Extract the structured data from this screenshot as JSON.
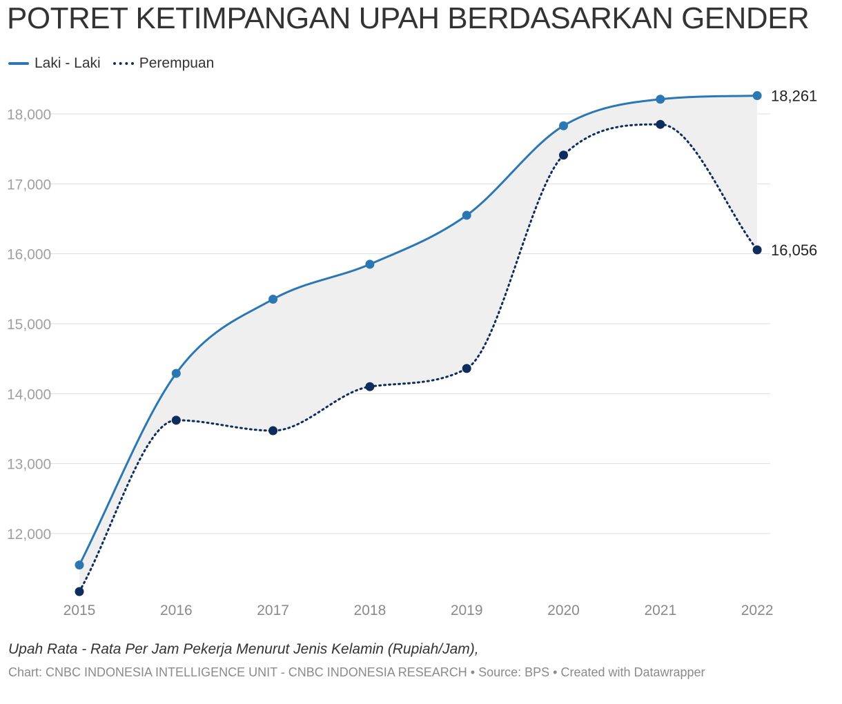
{
  "chart_data": {
    "type": "line",
    "title": "POTRET KETIMPANGAN UPAH BERDASARKAN GENDER",
    "categories": [
      "2015",
      "2016",
      "2017",
      "2018",
      "2019",
      "2020",
      "2021",
      "2022"
    ],
    "series": [
      {
        "name": "Laki - Laki",
        "style": "solid",
        "color": "#2a77b4",
        "values": [
          11550,
          14290,
          15350,
          15850,
          16550,
          17830,
          18210,
          18261
        ]
      },
      {
        "name": "Perempuan",
        "style": "dotted",
        "color": "#0e2d5c",
        "values": [
          11170,
          13620,
          13470,
          14100,
          14360,
          17410,
          17850,
          16056
        ]
      }
    ],
    "end_labels": [
      "18,261",
      "16,056"
    ],
    "yticks": [
      12000,
      13000,
      14000,
      15000,
      16000,
      17000,
      18000
    ],
    "ytick_labels": [
      "12,000",
      "13,000",
      "14,000",
      "15,000",
      "16,000",
      "17,000",
      "18,000"
    ],
    "ylim": [
      11000,
      18500
    ],
    "xlabel": "",
    "ylabel": "",
    "grid": true,
    "legend_position": "top-left",
    "area_between_fill": "#efefef"
  },
  "caption": "Upah Rata - Rata Per Jam Pekerja Menurut Jenis Kelamin (Rupiah/Jam),",
  "footer": "Chart: CNBC INDONESIA INTELLIGENCE UNIT - CNBC INDONESIA RESEARCH • Source: BPS • Created with Datawrapper"
}
